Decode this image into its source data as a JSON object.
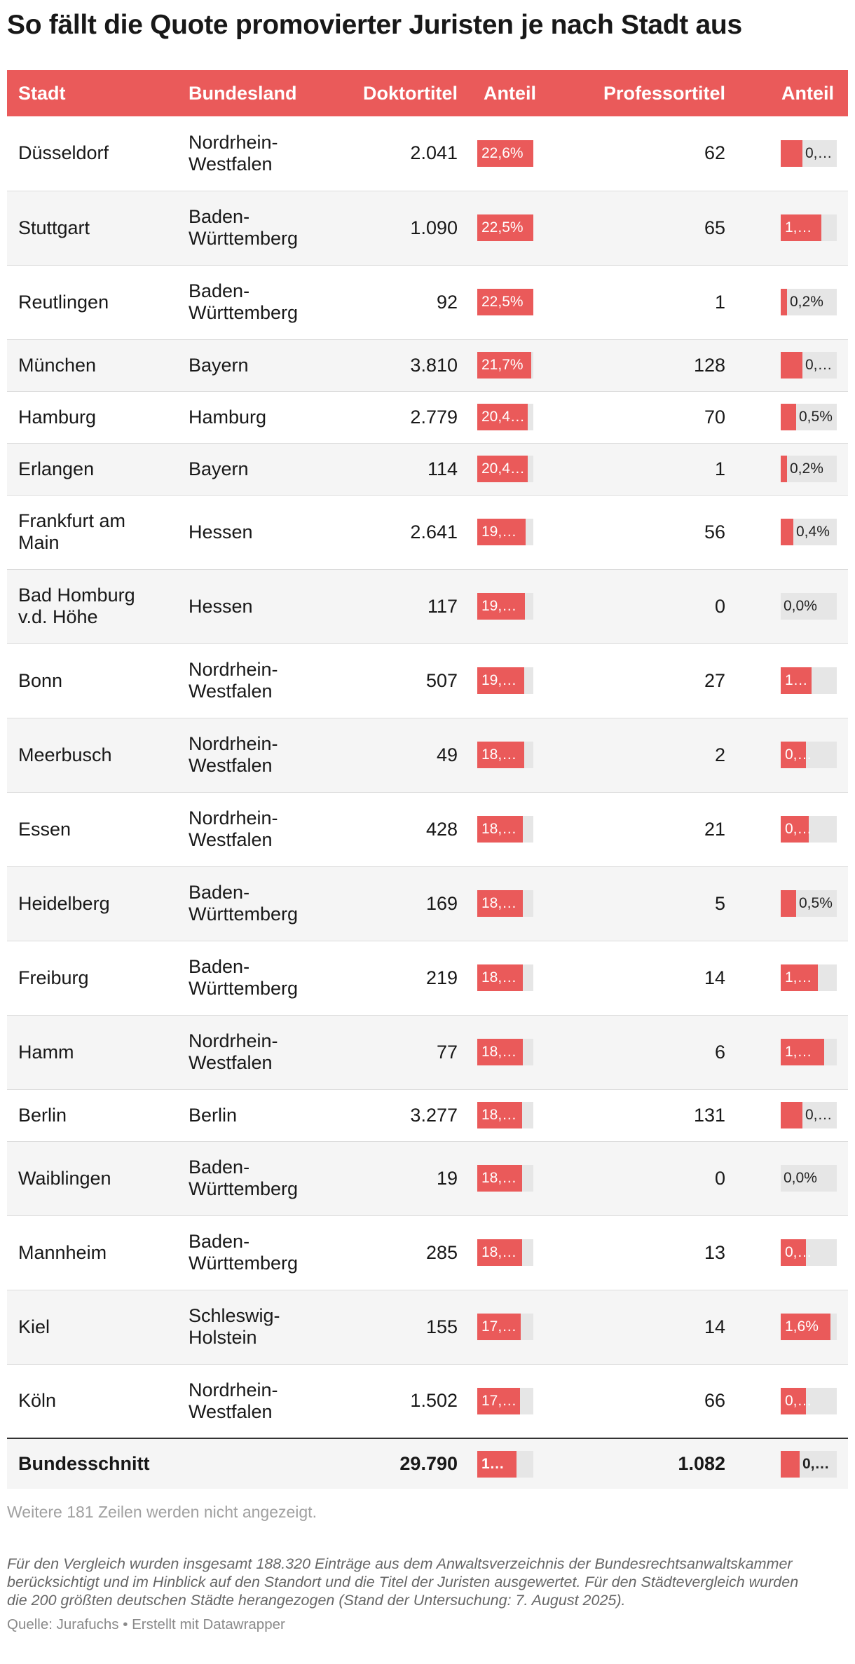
{
  "title": "So fällt die Quote promovierter Juristen je nach Stadt aus",
  "chart_data": {
    "type": "table",
    "columns": [
      "Stadt",
      "Bundesland",
      "Doktortitel",
      "Anteil",
      "Professortitel",
      "Anteil"
    ],
    "rows": [
      {
        "stadt": "Düsseldorf",
        "bundesland": "Nordrhein-Westfalen",
        "doktor": "2.041",
        "anteil_doktor": 22.6,
        "anteil_doktor_label": "22,6%",
        "professor": "62",
        "anteil_prof": 0.7,
        "anteil_prof_label": "0,…"
      },
      {
        "stadt": "Stuttgart",
        "bundesland": "Baden-Württemberg",
        "doktor": "1.090",
        "anteil_doktor": 22.5,
        "anteil_doktor_label": "22,5%",
        "professor": "65",
        "anteil_prof": 1.3,
        "anteil_prof_label": "1,…"
      },
      {
        "stadt": "Reutlingen",
        "bundesland": "Baden-Württemberg",
        "doktor": "92",
        "anteil_doktor": 22.5,
        "anteil_doktor_label": "22,5%",
        "professor": "1",
        "anteil_prof": 0.2,
        "anteil_prof_label": "0,2%"
      },
      {
        "stadt": "München",
        "bundesland": "Bayern",
        "doktor": "3.810",
        "anteil_doktor": 21.7,
        "anteil_doktor_label": "21,7%",
        "professor": "128",
        "anteil_prof": 0.7,
        "anteil_prof_label": "0,…"
      },
      {
        "stadt": "Hamburg",
        "bundesland": "Hamburg",
        "doktor": "2.779",
        "anteil_doktor": 20.4,
        "anteil_doktor_label": "20,4…",
        "professor": "70",
        "anteil_prof": 0.5,
        "anteil_prof_label": "0,5%"
      },
      {
        "stadt": "Erlangen",
        "bundesland": "Bayern",
        "doktor": "114",
        "anteil_doktor": 20.4,
        "anteil_doktor_label": "20,4…",
        "professor": "1",
        "anteil_prof": 0.2,
        "anteil_prof_label": "0,2%"
      },
      {
        "stadt": "Frankfurt am Main",
        "bundesland": "Hessen",
        "doktor": "2.641",
        "anteil_doktor": 19.6,
        "anteil_doktor_label": "19,…",
        "professor": "56",
        "anteil_prof": 0.4,
        "anteil_prof_label": "0,4%"
      },
      {
        "stadt": "Bad Homburg v.d. Höhe",
        "bundesland": "Hessen",
        "doktor": "117",
        "anteil_doktor": 19.3,
        "anteil_doktor_label": "19,…",
        "professor": "0",
        "anteil_prof": 0.0,
        "anteil_prof_label": "0,0%"
      },
      {
        "stadt": "Bonn",
        "bundesland": "Nordrhein-Westfalen",
        "doktor": "507",
        "anteil_doktor": 19.0,
        "anteil_doktor_label": "19,…",
        "professor": "27",
        "anteil_prof": 1.0,
        "anteil_prof_label": "1…"
      },
      {
        "stadt": "Meerbusch",
        "bundesland": "Nordrhein-Westfalen",
        "doktor": "49",
        "anteil_doktor": 18.8,
        "anteil_doktor_label": "18,…",
        "professor": "2",
        "anteil_prof": 0.8,
        "anteil_prof_label": "0,…"
      },
      {
        "stadt": "Essen",
        "bundesland": "Nordrhein-Westfalen",
        "doktor": "428",
        "anteil_doktor": 18.5,
        "anteil_doktor_label": "18,…",
        "professor": "21",
        "anteil_prof": 0.9,
        "anteil_prof_label": "0,…"
      },
      {
        "stadt": "Heidelberg",
        "bundesland": "Baden-Württemberg",
        "doktor": "169",
        "anteil_doktor": 18.4,
        "anteil_doktor_label": "18,…",
        "professor": "5",
        "anteil_prof": 0.5,
        "anteil_prof_label": "0,5%"
      },
      {
        "stadt": "Freiburg",
        "bundesland": "Baden-Württemberg",
        "doktor": "219",
        "anteil_doktor": 18.3,
        "anteil_doktor_label": "18,…",
        "professor": "14",
        "anteil_prof": 1.2,
        "anteil_prof_label": "1,…"
      },
      {
        "stadt": "Hamm",
        "bundesland": "Nordrhein-Westfalen",
        "doktor": "77",
        "anteil_doktor": 18.3,
        "anteil_doktor_label": "18,…",
        "professor": "6",
        "anteil_prof": 1.4,
        "anteil_prof_label": "1,…"
      },
      {
        "stadt": "Berlin",
        "bundesland": "Berlin",
        "doktor": "3.277",
        "anteil_doktor": 18.2,
        "anteil_doktor_label": "18,…",
        "professor": "131",
        "anteil_prof": 0.7,
        "anteil_prof_label": "0,…"
      },
      {
        "stadt": "Waiblingen",
        "bundesland": "Baden-Württemberg",
        "doktor": "19",
        "anteil_doktor": 18.1,
        "anteil_doktor_label": "18,…",
        "professor": "0",
        "anteil_prof": 0.0,
        "anteil_prof_label": "0,0%"
      },
      {
        "stadt": "Mannheim",
        "bundesland": "Baden-Württemberg",
        "doktor": "285",
        "anteil_doktor": 18.0,
        "anteil_doktor_label": "18,…",
        "professor": "13",
        "anteil_prof": 0.8,
        "anteil_prof_label": "0,…"
      },
      {
        "stadt": "Kiel",
        "bundesland": "Schleswig-Holstein",
        "doktor": "155",
        "anteil_doktor": 17.6,
        "anteil_doktor_label": "17,…",
        "professor": "14",
        "anteil_prof": 1.6,
        "anteil_prof_label": "1,6%"
      },
      {
        "stadt": "Köln",
        "bundesland": "Nordrhein-Westfalen",
        "doktor": "1.502",
        "anteil_doktor": 17.3,
        "anteil_doktor_label": "17,…",
        "professor": "66",
        "anteil_prof": 0.8,
        "anteil_prof_label": "0,…"
      }
    ],
    "summary": {
      "stadt": "Bundesschnitt",
      "bundesland": "",
      "doktor": "29.790",
      "anteil_doktor": 15.8,
      "anteil_doktor_label": "1…",
      "professor": "1.082",
      "anteil_prof": 0.6,
      "anteil_prof_label": "0,…"
    },
    "scale_doktor_max": 22.6,
    "scale_prof_max": 1.8
  },
  "colors": {
    "accent": "#ea5a5a",
    "bar_bg": "#e6e6e6",
    "row_alt": "#f5f5f5"
  },
  "footer": {
    "hidden_rows": "Weitere 181 Zeilen werden nicht angezeigt.",
    "description": "Für den Vergleich wurden insgesamt 188.320 Einträge aus dem Anwaltsverzeichnis der Bundesrechtsanwaltskammer berücksichtigt und im Hinblick auf den Standort und die Titel der Juristen ausgewertet. Für den Städtevergleich wurden die 200 größten deutschen Städte herangezogen (Stand der Untersuchung: 7. August 2025).",
    "source": "Quelle: Jurafuchs • Erstellt mit Datawrapper"
  }
}
